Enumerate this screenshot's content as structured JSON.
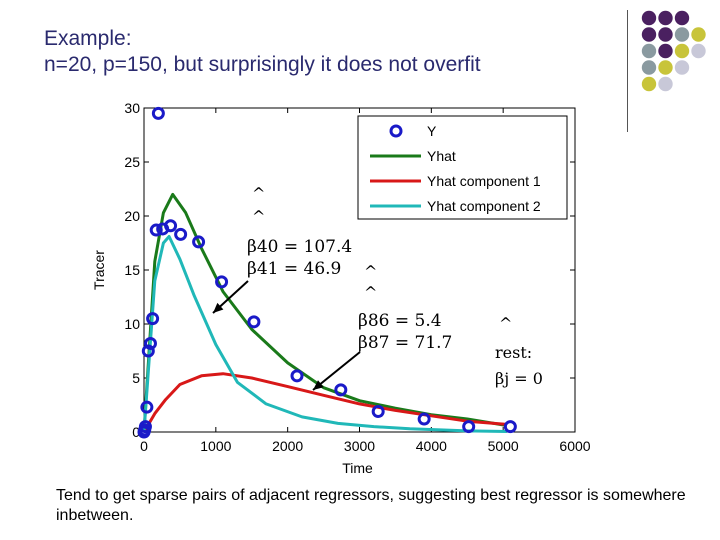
{
  "slide": {
    "title_line1": "Example:",
    "title_line2": "n=20, p=150, but surprisingly it does not overfit",
    "footer": "Tend to get sparse pairs of adjacent regressors, suggesting best regressor is somewhere inbetween."
  },
  "decor": {
    "dot_colors": [
      "#4a2060",
      "#8a9aa0",
      "#c8c43a",
      "#c8c8d8"
    ]
  },
  "annotations": {
    "a1_line1": "β40 = 107.4",
    "a1_line2": "β41 = 46.9",
    "a2_line1": "β86 = 5.4",
    "a2_line2": "β87 = 71.7",
    "a3_line1": "rest:",
    "a3_line2": "βj = 0",
    "hat": "^"
  },
  "chart_data": {
    "type": "line",
    "xlabel": "Time",
    "ylabel": "Tracer",
    "xlim": [
      0,
      6000
    ],
    "ylim": [
      0,
      30
    ],
    "xticks": [
      0,
      1000,
      2000,
      3000,
      4000,
      5000,
      6000
    ],
    "yticks": [
      0,
      5,
      10,
      15,
      20,
      25,
      30
    ],
    "legend_position": "top-right",
    "series": [
      {
        "name": "Y",
        "kind": "scatter",
        "color": "#1a1ac8",
        "x": [
          0,
          10,
          20,
          40,
          60,
          90,
          120,
          170,
          200,
          260,
          370,
          510,
          760,
          1080,
          1530,
          2130,
          2740,
          3260,
          3900,
          4520,
          5100
        ],
        "y": [
          0,
          0.2,
          0.5,
          2.3,
          7.5,
          8.2,
          10.5,
          18.7,
          29.5,
          18.8,
          19.1,
          18.3,
          17.6,
          13.9,
          10.2,
          5.2,
          3.9,
          1.9,
          1.2,
          0.5,
          0.5
        ]
      },
      {
        "name": "Yhat",
        "color": "#1a7a1a",
        "x": [
          0,
          150,
          270,
          400,
          580,
          800,
          1100,
          1500,
          2000,
          2500,
          3000,
          3500,
          4000,
          4500,
          5050
        ],
        "y": [
          0,
          15.8,
          20.3,
          22.0,
          20.3,
          17.0,
          13.0,
          9.5,
          6.4,
          4.1,
          2.9,
          2.2,
          1.6,
          1.2,
          0.6
        ]
      },
      {
        "name": "Yhat component 1",
        "color": "#d81818",
        "x": [
          0,
          150,
          300,
          500,
          800,
          1100,
          1500,
          2000,
          2500,
          3000,
          3500,
          4000,
          4500,
          5050
        ],
        "y": [
          0,
          1.7,
          3.0,
          4.4,
          5.2,
          5.4,
          5.0,
          4.2,
          3.4,
          2.6,
          2.0,
          1.5,
          1.0,
          0.7
        ]
      },
      {
        "name": "Yhat component 2",
        "color": "#20b8b8",
        "x": [
          0,
          150,
          270,
          350,
          500,
          700,
          1000,
          1300,
          1700,
          2200,
          2700,
          3200,
          3700,
          4500,
          5050
        ],
        "y": [
          0,
          14.0,
          17.5,
          18.1,
          16.0,
          12.6,
          8.1,
          4.6,
          2.6,
          1.4,
          0.8,
          0.5,
          0.3,
          0.1,
          0.05
        ]
      }
    ]
  }
}
